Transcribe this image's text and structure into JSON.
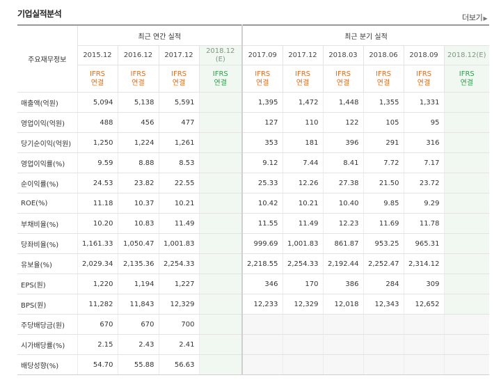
{
  "title": "기업실적분석",
  "more_label": "더보기",
  "row_header": "주요재무정보",
  "annual_group": "최근 연간 실적",
  "quarter_group": "최근 분기 실적",
  "annual_cols": [
    "2015.12",
    "2016.12",
    "2017.12",
    "2018.12"
  ],
  "annual_est": "(E)",
  "quarter_cols": [
    "2017.09",
    "2017.12",
    "2018.03",
    "2018.06",
    "2018.09",
    "2018.12"
  ],
  "quarter_est": "(E)",
  "ifrs_line1": "IFRS",
  "ifrs_line2": "연결",
  "rows": [
    {
      "label": "매출액(억원)",
      "annual": [
        "5,094",
        "5,138",
        "5,591",
        ""
      ],
      "quarter": [
        "1,395",
        "1,472",
        "1,448",
        "1,355",
        "1,331",
        ""
      ]
    },
    {
      "label": "영업이익(억원)",
      "annual": [
        "488",
        "456",
        "477",
        ""
      ],
      "quarter": [
        "127",
        "110",
        "122",
        "105",
        "95",
        ""
      ]
    },
    {
      "label": "당기순이익(억원)",
      "annual": [
        "1,250",
        "1,224",
        "1,261",
        ""
      ],
      "quarter": [
        "353",
        "181",
        "396",
        "291",
        "316",
        ""
      ]
    },
    {
      "label": "영업이익률(%)",
      "annual": [
        "9.59",
        "8.88",
        "8.53",
        ""
      ],
      "quarter": [
        "9.12",
        "7.44",
        "8.41",
        "7.72",
        "7.17",
        ""
      ]
    },
    {
      "label": "순이익률(%)",
      "annual": [
        "24.53",
        "23.82",
        "22.55",
        ""
      ],
      "quarter": [
        "25.33",
        "12.26",
        "27.38",
        "21.50",
        "23.72",
        ""
      ]
    },
    {
      "label": "ROE(%)",
      "annual": [
        "11.18",
        "10.37",
        "10.21",
        ""
      ],
      "quarter": [
        "10.42",
        "10.21",
        "10.40",
        "9.85",
        "9.29",
        ""
      ]
    },
    {
      "label": "부채비율(%)",
      "annual": [
        "10.20",
        "10.83",
        "11.49",
        ""
      ],
      "quarter": [
        "11.55",
        "11.49",
        "12.23",
        "11.69",
        "11.78",
        ""
      ]
    },
    {
      "label": "당좌비율(%)",
      "annual": [
        "1,161.33",
        "1,050.47",
        "1,001.83",
        ""
      ],
      "quarter": [
        "999.69",
        "1,001.83",
        "861.87",
        "953.25",
        "965.31",
        ""
      ]
    },
    {
      "label": "유보율(%)",
      "annual": [
        "2,029.34",
        "2,135.36",
        "2,254.33",
        ""
      ],
      "quarter": [
        "2,218.55",
        "2,254.33",
        "2,192.44",
        "2,252.47",
        "2,314.12",
        ""
      ]
    },
    {
      "label": "EPS(원)",
      "annual": [
        "1,220",
        "1,194",
        "1,227",
        ""
      ],
      "quarter": [
        "346",
        "170",
        "386",
        "284",
        "309",
        ""
      ]
    },
    {
      "label": "BPS(원)",
      "annual": [
        "11,282",
        "11,843",
        "12,329",
        ""
      ],
      "quarter": [
        "12,233",
        "12,329",
        "12,018",
        "12,343",
        "12,652",
        ""
      ]
    },
    {
      "label": "주당배당금(원)",
      "annual": [
        "670",
        "670",
        "700",
        ""
      ],
      "quarter": [
        "",
        "",
        "",
        "",
        "",
        ""
      ]
    },
    {
      "label": "시가배당률(%)",
      "annual": [
        "2.15",
        "2.43",
        "2.41",
        ""
      ],
      "quarter": [
        "",
        "",
        "",
        "",
        "",
        ""
      ]
    },
    {
      "label": "배당성향(%)",
      "annual": [
        "54.70",
        "55.88",
        "56.63",
        ""
      ],
      "quarter": [
        "",
        "",
        "",
        "",
        "",
        ""
      ]
    }
  ]
}
